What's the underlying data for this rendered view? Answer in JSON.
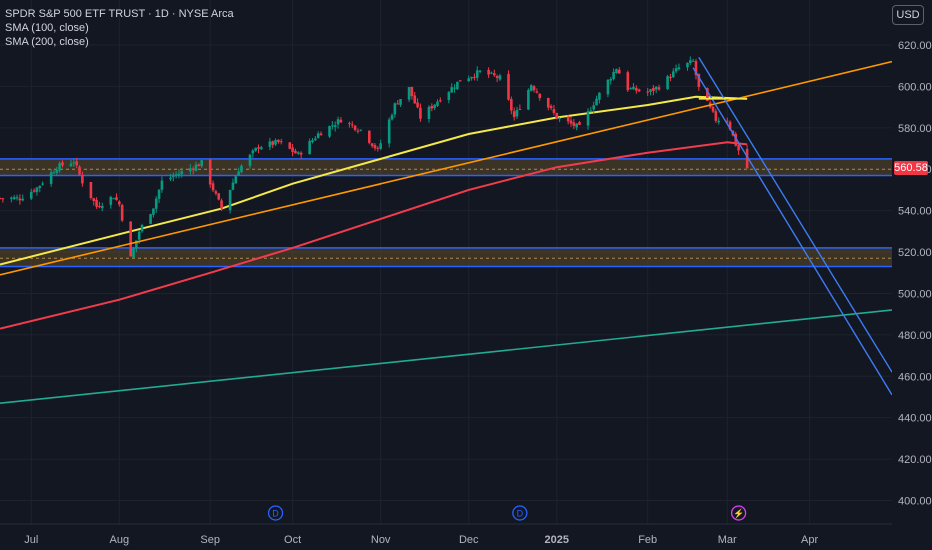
{
  "legend": {
    "symbol_line": "SPDR S&P 500 ETF TRUST · 1D · NYSE Arca",
    "sma100": "SMA (100, close)",
    "sma200": "SMA (200, close)"
  },
  "currency_button": "USD",
  "last_price": "560.58",
  "colors": {
    "background": "#131722",
    "grid": "#1e222d",
    "up": "#089981",
    "down": "#f23645",
    "sma100": "#f5e94a",
    "sma200": "#f23c4c",
    "zone_line": "#2962ff",
    "zone_fill": "#5d4a2a",
    "trend_orange": "#ff9800",
    "trend_teal": "#22ab94",
    "channel": "#3d7cf5"
  },
  "event_markers": [
    {
      "label": "D",
      "date": "2024-09-25",
      "type": "dividend"
    },
    {
      "label": "D",
      "date": "2024-12-20",
      "type": "dividend"
    },
    {
      "label": "⚡",
      "date": "2025-03-07",
      "type": "event"
    }
  ],
  "chart_data": {
    "type": "candlestick",
    "y_axis": {
      "min": 395,
      "max": 625,
      "ticks": [
        400,
        420,
        440,
        460,
        480,
        500,
        520,
        540,
        560,
        580,
        600,
        620
      ]
    },
    "x_axis": {
      "start": "2024-06-20",
      "end": "2025-04-30",
      "ticks": [
        {
          "label": "Jul",
          "date": "2024-07-01"
        },
        {
          "label": "Aug",
          "date": "2024-08-01"
        },
        {
          "label": "Sep",
          "date": "2024-09-02"
        },
        {
          "label": "Oct",
          "date": "2024-10-01"
        },
        {
          "label": "Nov",
          "date": "2024-11-01"
        },
        {
          "label": "Dec",
          "date": "2024-12-02"
        },
        {
          "label": "2025",
          "date": "2025-01-02"
        },
        {
          "label": "Feb",
          "date": "2025-02-03"
        },
        {
          "label": "Mar",
          "date": "2025-03-03"
        },
        {
          "label": "Apr",
          "date": "2025-04-01"
        }
      ]
    },
    "close_points": [
      [
        "2024-06-20",
        546
      ],
      [
        "2024-06-27",
        546
      ],
      [
        "2024-07-03",
        551
      ],
      [
        "2024-07-10",
        561
      ],
      [
        "2024-07-16",
        564
      ],
      [
        "2024-07-19",
        554
      ],
      [
        "2024-07-24",
        542
      ],
      [
        "2024-07-30",
        547
      ],
      [
        "2024-08-01",
        543
      ],
      [
        "2024-08-05",
        517
      ],
      [
        "2024-08-08",
        530
      ],
      [
        "2024-08-13",
        542
      ],
      [
        "2024-08-16",
        554
      ],
      [
        "2024-08-22",
        558
      ],
      [
        "2024-08-30",
        563
      ],
      [
        "2024-09-06",
        541
      ],
      [
        "2024-09-12",
        560
      ],
      [
        "2024-09-19",
        571
      ],
      [
        "2024-09-26",
        573
      ],
      [
        "2024-10-03",
        567
      ],
      [
        "2024-10-10",
        577
      ],
      [
        "2024-10-18",
        584
      ],
      [
        "2024-10-25",
        579
      ],
      [
        "2024-10-31",
        569
      ],
      [
        "2024-11-06",
        591
      ],
      [
        "2024-11-11",
        599
      ],
      [
        "2024-11-15",
        585
      ],
      [
        "2024-11-21",
        593
      ],
      [
        "2024-11-29",
        603
      ],
      [
        "2024-12-06",
        607
      ],
      [
        "2024-12-13",
        604
      ],
      [
        "2024-12-18",
        585
      ],
      [
        "2024-12-24",
        601
      ],
      [
        "2025-01-02",
        585
      ],
      [
        "2025-01-10",
        580
      ],
      [
        "2025-01-15",
        592
      ],
      [
        "2025-01-23",
        609
      ],
      [
        "2025-01-27",
        599
      ],
      [
        "2025-02-03",
        597
      ],
      [
        "2025-02-07",
        600
      ],
      [
        "2025-02-14",
        609
      ],
      [
        "2025-02-19",
        612
      ],
      [
        "2025-02-21",
        599
      ],
      [
        "2025-02-27",
        584
      ],
      [
        "2025-03-03",
        584
      ],
      [
        "2025-03-06",
        572
      ],
      [
        "2025-03-10",
        560.58
      ]
    ],
    "sma100": [
      [
        "2024-06-20",
        514
      ],
      [
        "2024-08-05",
        530
      ],
      [
        "2024-09-06",
        541
      ],
      [
        "2024-10-01",
        553
      ],
      [
        "2024-11-01",
        565
      ],
      [
        "2024-12-02",
        577
      ],
      [
        "2025-01-02",
        585
      ],
      [
        "2025-02-03",
        591
      ],
      [
        "2025-02-20",
        595
      ],
      [
        "2025-03-10",
        594
      ]
    ],
    "sma200": [
      [
        "2024-06-20",
        483
      ],
      [
        "2024-08-01",
        497
      ],
      [
        "2024-09-02",
        510
      ],
      [
        "2024-10-01",
        522
      ],
      [
        "2024-11-01",
        536
      ],
      [
        "2024-12-02",
        550
      ],
      [
        "2025-01-02",
        561
      ],
      [
        "2025-02-03",
        568
      ],
      [
        "2025-03-03",
        573
      ],
      [
        "2025-03-10",
        572
      ]
    ],
    "zones": [
      {
        "top": 565,
        "bottom": 557,
        "mid": 560
      },
      {
        "top": 522,
        "bottom": 513,
        "mid": 517
      }
    ],
    "trendlines": [
      {
        "name": "orange",
        "points": [
          [
            "2024-06-20",
            509
          ],
          [
            "2025-04-30",
            612
          ]
        ]
      },
      {
        "name": "teal",
        "points": [
          [
            "2024-06-20",
            447
          ],
          [
            "2025-04-30",
            492
          ]
        ]
      },
      {
        "name": "channel-upper",
        "points": [
          [
            "2025-02-21",
            614
          ],
          [
            "2025-04-30",
            462
          ]
        ]
      },
      {
        "name": "channel-lower",
        "points": [
          [
            "2025-02-19",
            609
          ],
          [
            "2025-04-30",
            451
          ]
        ]
      },
      {
        "name": "channel-cap",
        "points": [
          [
            "2025-02-21",
            594
          ],
          [
            "2025-03-10",
            594
          ]
        ]
      }
    ]
  }
}
